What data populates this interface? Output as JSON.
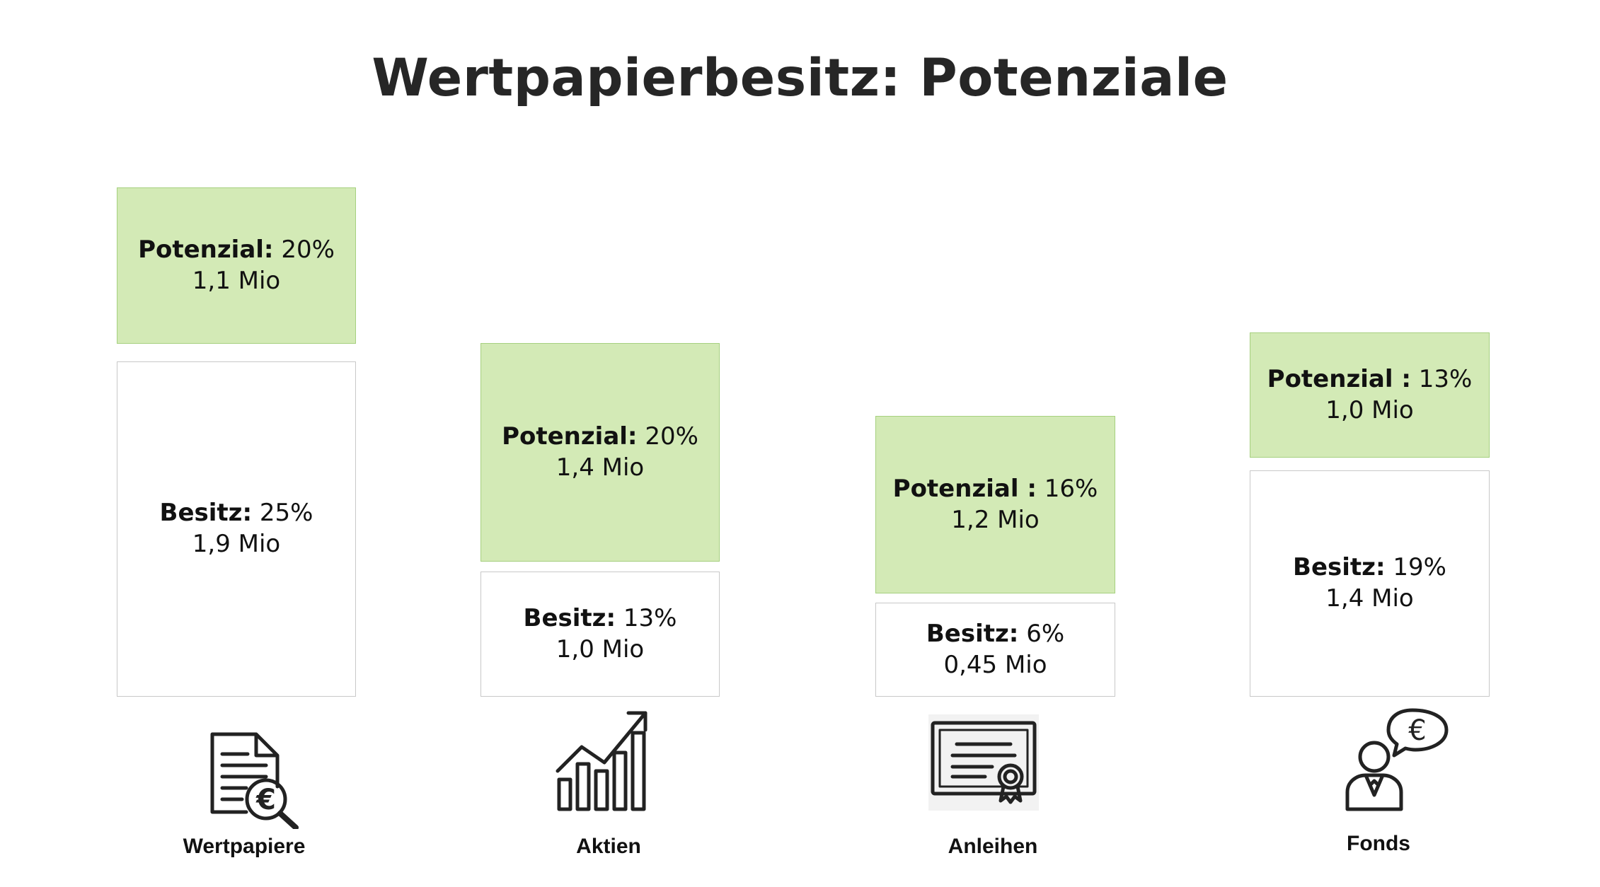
{
  "title": "Wertpapierbesitz: Potenziale",
  "colors": {
    "potential_fill": "#d3eab6",
    "potential_border": "#a6d07f",
    "holding_border": "#c8c8c8",
    "text": "#262626"
  },
  "chart_data": {
    "type": "bar",
    "stacked": true,
    "title": "Wertpapierbesitz: Potenziale",
    "categories": [
      "Wertpapiere",
      "Aktien",
      "Anleihen",
      "Fonds"
    ],
    "series": [
      {
        "name": "Besitz",
        "prefix": "Besitz:",
        "percent_labels": [
          "25%",
          "13%",
          "6%",
          "19%"
        ],
        "values": [
          25,
          13,
          6,
          19
        ],
        "count_labels": [
          "1,9 Mio",
          "1,0 Mio",
          "0,45 Mio",
          "1,4 Mio"
        ]
      },
      {
        "name": "Potenzial",
        "prefix": [
          "Potenzial:",
          "Potenzial:",
          "Potenzial :",
          "Potenzial :"
        ],
        "percent_labels": [
          "20%",
          "20%",
          "16%",
          "13%"
        ],
        "values": [
          20,
          20,
          16,
          13
        ],
        "count_labels": [
          "1,1 Mio",
          "1,4 Mio",
          "1,2 Mio",
          "1,0 Mio"
        ]
      }
    ],
    "icons": [
      "document-euro-magnifier-icon",
      "growth-chart-icon",
      "bond-certificate-icon",
      "advisor-euro-icon"
    ],
    "grid": false,
    "legend": "none"
  }
}
